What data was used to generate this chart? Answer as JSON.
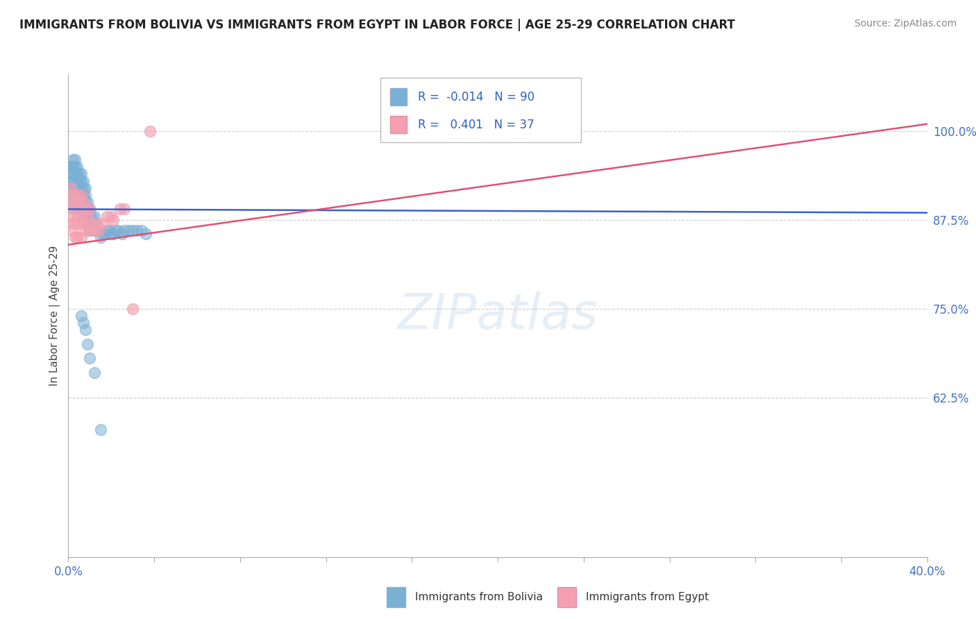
{
  "title": "IMMIGRANTS FROM BOLIVIA VS IMMIGRANTS FROM EGYPT IN LABOR FORCE | AGE 25-29 CORRELATION CHART",
  "source_text": "Source: ZipAtlas.com",
  "ylabel": "In Labor Force | Age 25-29",
  "y_ticks": [
    0.625,
    0.75,
    0.875,
    1.0
  ],
  "y_tick_labels": [
    "62.5%",
    "75.0%",
    "87.5%",
    "100.0%"
  ],
  "xlim": [
    0.0,
    0.4
  ],
  "ylim": [
    0.4,
    1.08
  ],
  "bolivia_R": -0.014,
  "bolivia_N": 90,
  "egypt_R": 0.401,
  "egypt_N": 37,
  "bolivia_color": "#7ab0d4",
  "egypt_color": "#f4a0b0",
  "bolivia_line_color": "#3a5fcd",
  "egypt_line_color": "#e05070",
  "legend_label_bolivia": "Immigrants from Bolivia",
  "legend_label_egypt": "Immigrants from Egypt",
  "background_color": "#ffffff",
  "grid_color": "#cccccc",
  "bolivia_x": [
    0.0,
    0.0,
    0.001,
    0.001,
    0.001,
    0.001,
    0.001,
    0.002,
    0.002,
    0.002,
    0.002,
    0.002,
    0.002,
    0.003,
    0.003,
    0.003,
    0.003,
    0.003,
    0.003,
    0.003,
    0.003,
    0.004,
    0.004,
    0.004,
    0.004,
    0.004,
    0.004,
    0.005,
    0.005,
    0.005,
    0.005,
    0.005,
    0.005,
    0.006,
    0.006,
    0.006,
    0.006,
    0.006,
    0.006,
    0.007,
    0.007,
    0.007,
    0.007,
    0.007,
    0.007,
    0.008,
    0.008,
    0.008,
    0.008,
    0.008,
    0.009,
    0.009,
    0.009,
    0.009,
    0.01,
    0.01,
    0.01,
    0.01,
    0.011,
    0.011,
    0.012,
    0.012,
    0.012,
    0.013,
    0.013,
    0.014,
    0.015,
    0.015,
    0.016,
    0.017,
    0.018,
    0.019,
    0.02,
    0.021,
    0.022,
    0.023,
    0.025,
    0.026,
    0.028,
    0.03,
    0.032,
    0.034,
    0.036,
    0.006,
    0.007,
    0.008,
    0.009,
    0.01,
    0.012,
    0.015
  ],
  "bolivia_y": [
    0.95,
    0.92,
    0.95,
    0.94,
    0.93,
    0.92,
    0.9,
    0.96,
    0.95,
    0.94,
    0.93,
    0.92,
    0.91,
    0.96,
    0.95,
    0.94,
    0.93,
    0.92,
    0.91,
    0.9,
    0.89,
    0.95,
    0.94,
    0.93,
    0.92,
    0.91,
    0.9,
    0.94,
    0.93,
    0.92,
    0.91,
    0.9,
    0.89,
    0.94,
    0.93,
    0.92,
    0.91,
    0.9,
    0.89,
    0.93,
    0.92,
    0.91,
    0.9,
    0.89,
    0.88,
    0.92,
    0.91,
    0.9,
    0.89,
    0.88,
    0.9,
    0.89,
    0.88,
    0.87,
    0.89,
    0.88,
    0.87,
    0.86,
    0.88,
    0.87,
    0.88,
    0.87,
    0.86,
    0.87,
    0.86,
    0.86,
    0.86,
    0.85,
    0.855,
    0.855,
    0.86,
    0.86,
    0.855,
    0.855,
    0.86,
    0.86,
    0.855,
    0.86,
    0.86,
    0.86,
    0.86,
    0.86,
    0.855,
    0.74,
    0.73,
    0.72,
    0.7,
    0.68,
    0.66,
    0.58
  ],
  "egypt_x": [
    0.0,
    0.0,
    0.001,
    0.001,
    0.002,
    0.002,
    0.002,
    0.003,
    0.003,
    0.003,
    0.004,
    0.004,
    0.004,
    0.005,
    0.005,
    0.006,
    0.006,
    0.006,
    0.007,
    0.007,
    0.008,
    0.008,
    0.009,
    0.01,
    0.01,
    0.011,
    0.012,
    0.013,
    0.014,
    0.016,
    0.018,
    0.02,
    0.021,
    0.024,
    0.026,
    0.03,
    0.038
  ],
  "egypt_y": [
    0.9,
    0.87,
    0.92,
    0.88,
    0.91,
    0.89,
    0.86,
    0.9,
    0.87,
    0.85,
    0.91,
    0.88,
    0.85,
    0.9,
    0.87,
    0.91,
    0.88,
    0.85,
    0.9,
    0.87,
    0.89,
    0.86,
    0.88,
    0.89,
    0.86,
    0.87,
    0.86,
    0.87,
    0.86,
    0.87,
    0.88,
    0.88,
    0.875,
    0.89,
    0.89,
    0.75,
    1.0
  ],
  "bolivia_trend_x": [
    0.0,
    0.4
  ],
  "bolivia_trend_y": [
    0.89,
    0.885
  ],
  "egypt_trend_x": [
    0.0,
    0.4
  ],
  "egypt_trend_y": [
    0.84,
    1.01
  ]
}
